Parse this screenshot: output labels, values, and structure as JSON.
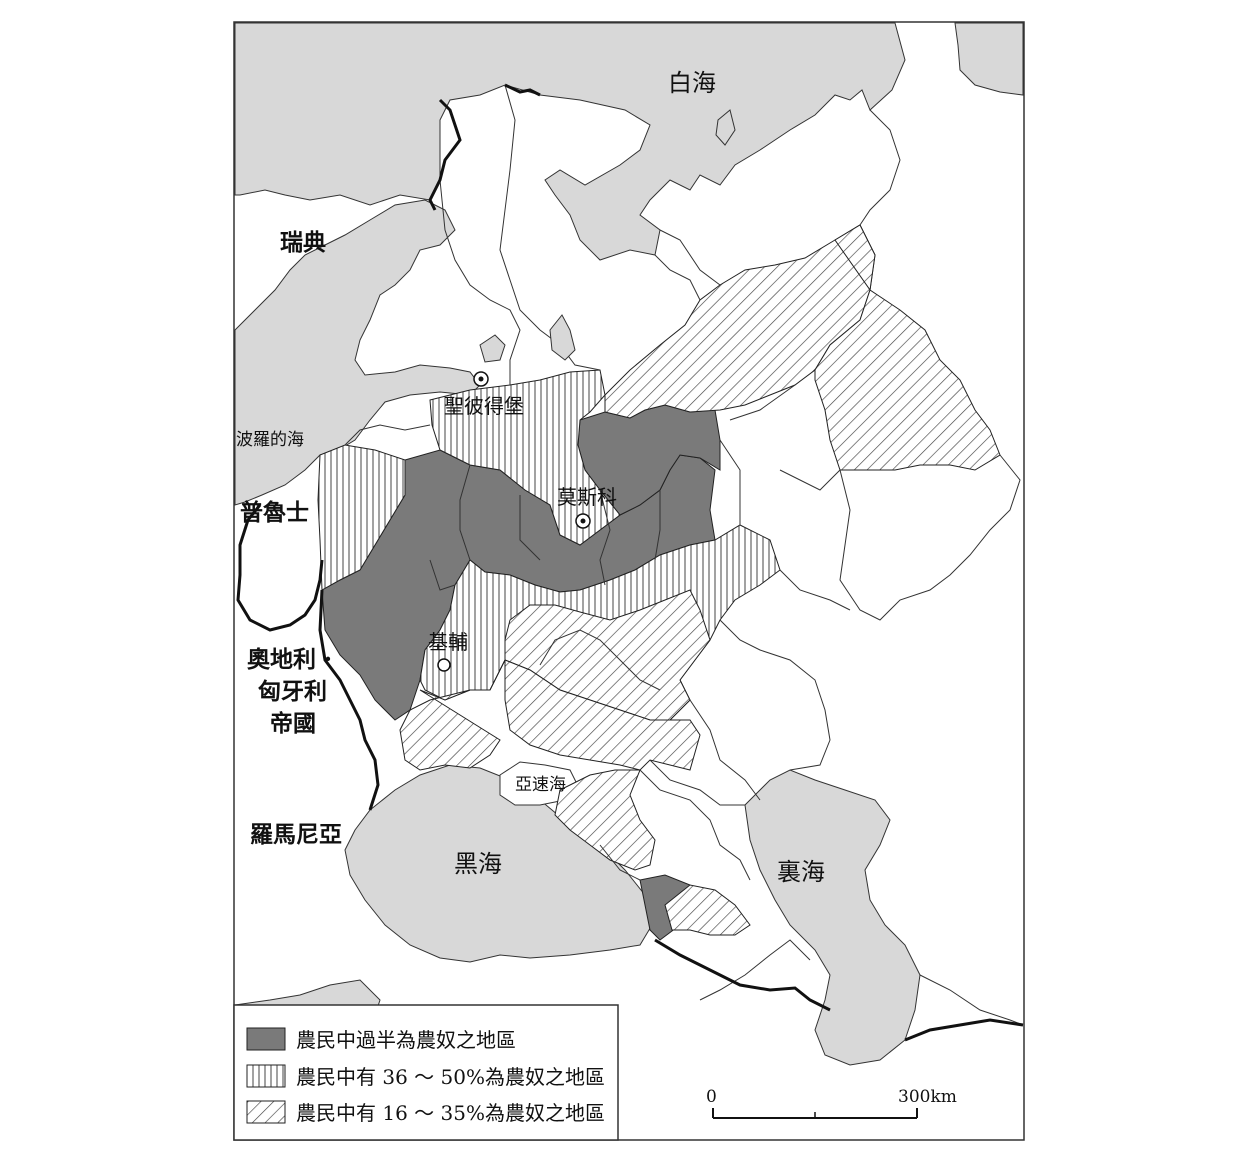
{
  "labels": {
    "white_sea": "白海",
    "sweden": "瑞典",
    "baltic_sea": "波羅的海",
    "prussia": "普魯士",
    "austria_hungary_1": "奧地利 ·",
    "austria_hungary_2": "匈牙利",
    "austria_hungary_3": "帝國",
    "romania": "羅馬尼亞",
    "black_sea": "黑海",
    "caspian_sea": "裏海",
    "azov_sea": "亞速海",
    "st_petersburg": "聖彼得堡",
    "moscow": "莫斯科",
    "kiev": "基輔"
  },
  "legend": [
    {
      "pattern": "solid",
      "label": "農民中過半為農奴之地區"
    },
    {
      "pattern": "vertical-lines",
      "label": "農民中有 36 ～ 50%為農奴之地區"
    },
    {
      "pattern": "diagonal-lines",
      "label": "農民中有 16 ～ 35%為農奴之地區"
    }
  ],
  "scale_bar": {
    "start": "0",
    "end": "300km"
  },
  "colors": {
    "sea": "#d8d8d8",
    "serf_majority": "#7a7a7a",
    "outline": "#333333",
    "border": "#111111"
  }
}
